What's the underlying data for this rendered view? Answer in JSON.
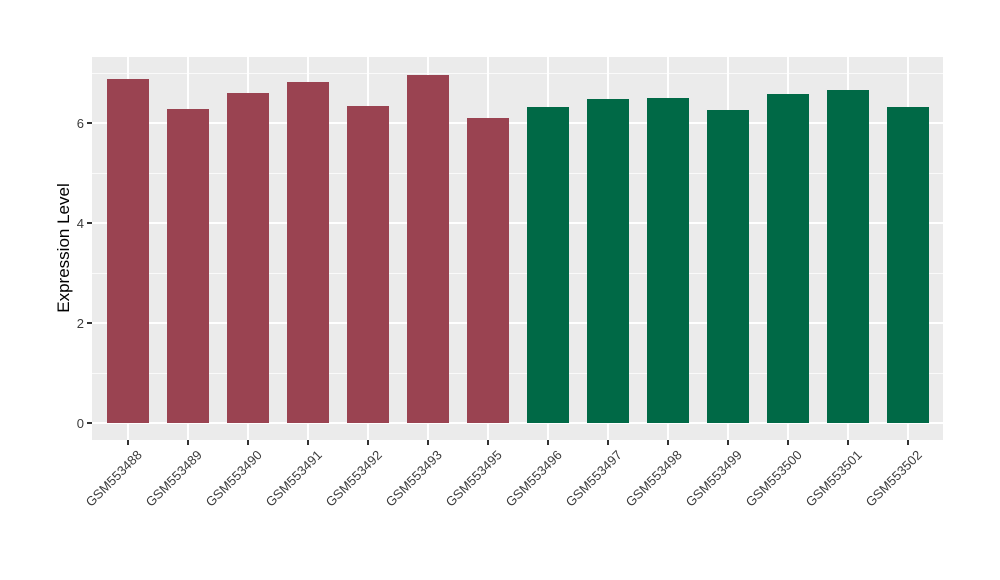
{
  "chart_data": {
    "type": "bar",
    "title": "",
    "xlabel": "",
    "ylabel": "Expression Level",
    "ylim": [
      0,
      7.32
    ],
    "yticks": [
      0,
      2,
      4,
      6
    ],
    "yticks_minor": [
      1,
      3,
      5,
      7
    ],
    "grid": "on",
    "legend_position": "none",
    "categories": [
      "GSM553488",
      "GSM553489",
      "GSM553490",
      "GSM553491",
      "GSM553492",
      "GSM553493",
      "GSM553495",
      "GSM553496",
      "GSM553497",
      "GSM553498",
      "GSM553499",
      "GSM553500",
      "GSM553501",
      "GSM553502"
    ],
    "values": [
      6.88,
      6.29,
      6.61,
      6.83,
      6.34,
      6.97,
      6.1,
      6.32,
      6.48,
      6.51,
      6.26,
      6.58,
      6.67,
      6.33
    ],
    "point_groups": [
      "group1",
      "group1",
      "group1",
      "group1",
      "group1",
      "group1",
      "group1",
      "group2",
      "group2",
      "group2",
      "group2",
      "group2",
      "group2",
      "group2"
    ],
    "colors": {
      "group1": "#9A4351",
      "group2": "#006946",
      "panel_background": "#EBEBEB",
      "gridline": "#FFFFFF",
      "tick_mark": "#333333",
      "axis_text": "#3C3C3C",
      "axis_title": "#000000",
      "figure_background": "#FFFFFF"
    }
  }
}
